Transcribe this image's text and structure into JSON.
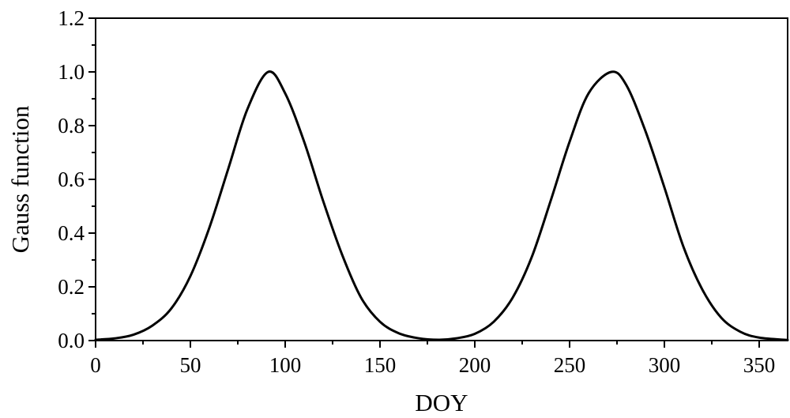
{
  "chart_data": {
    "type": "line",
    "xlabel": "DOY",
    "ylabel": "Gauss function",
    "xlim": [
      0,
      365
    ],
    "ylim": [
      0,
      1.2
    ],
    "x_ticks": [
      0,
      50,
      100,
      150,
      200,
      250,
      300,
      350
    ],
    "x_tick_labels": [
      "0",
      "50",
      "100",
      "150",
      "200",
      "250",
      "300",
      "350"
    ],
    "y_ticks": [
      0.0,
      0.2,
      0.4,
      0.6,
      0.8,
      1.0,
      1.2
    ],
    "y_tick_labels": [
      "0.0",
      "0.2",
      "0.4",
      "0.6",
      "0.8",
      "1.0",
      "1.2"
    ],
    "grid": false,
    "legend": "none",
    "line_color": "#000000",
    "series": [
      {
        "x": [
          0,
          10,
          20,
          30,
          40,
          50,
          60,
          70,
          80,
          91,
          100,
          110,
          120,
          130,
          140,
          150,
          160,
          170,
          181,
          190,
          200,
          210,
          220,
          230,
          240,
          250,
          260,
          272,
          280,
          290,
          300,
          310,
          320,
          330,
          340,
          350,
          365
        ],
        "y": [
          0.003,
          0.008,
          0.022,
          0.056,
          0.12,
          0.24,
          0.42,
          0.64,
          0.86,
          1.0,
          0.92,
          0.74,
          0.52,
          0.32,
          0.16,
          0.07,
          0.027,
          0.009,
          0.003,
          0.008,
          0.025,
          0.07,
          0.16,
          0.31,
          0.52,
          0.74,
          0.92,
          1.0,
          0.95,
          0.78,
          0.57,
          0.35,
          0.19,
          0.085,
          0.033,
          0.011,
          0.002
        ]
      }
    ]
  }
}
